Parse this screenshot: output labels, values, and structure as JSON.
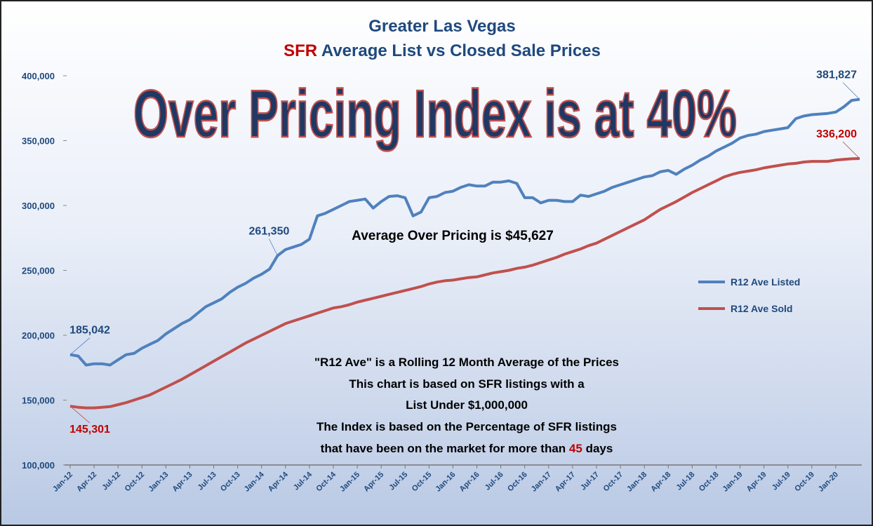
{
  "chart_data": {
    "type": "line",
    "title": "Greater Las Vegas",
    "subtitle_parts": [
      "SFR",
      " Average List vs Closed Sale Prices"
    ],
    "annotations": [
      "Over Pricing Index is at 40%",
      "Average Over Pricing is $45,627"
    ],
    "notes": [
      "\"R12 Ave\" is a Rolling 12 Month Average of the Prices",
      "This chart is based on SFR listings with a",
      "List Under $1,000,000",
      "The Index is based on the Percentage of SFR listings"
    ],
    "note_last_parts": [
      "that have been on the market for more than ",
      "45",
      " days"
    ],
    "categories": [
      "Jan-12",
      null,
      null,
      "Apr-12",
      null,
      null,
      "Jul-12",
      null,
      null,
      "Oct-12",
      null,
      null,
      "Jan-13",
      null,
      null,
      "Apr-13",
      null,
      null,
      "Jul-13",
      null,
      null,
      "Oct-13",
      null,
      null,
      "Jan-14",
      null,
      null,
      "Apr-14",
      null,
      null,
      "Jul-14",
      null,
      null,
      "Oct-14",
      null,
      null,
      "Jan-15",
      null,
      null,
      "Apr-15",
      null,
      null,
      "Jul-15",
      null,
      null,
      "Oct-15",
      null,
      null,
      "Jan-16",
      null,
      null,
      "Apr-16",
      null,
      null,
      "Jul-16",
      null,
      null,
      "Oct-16",
      null,
      null,
      "Jan-17",
      null,
      null,
      "Apr-17",
      null,
      null,
      "Jul-17",
      null,
      null,
      "Oct-17",
      null,
      null,
      "Jan-18",
      null,
      null,
      "Apr-18",
      null,
      null,
      "Jul-18",
      null,
      null,
      "Oct-18",
      null,
      null,
      "Jan-19",
      null,
      null,
      "Apr-19",
      null,
      null,
      "Jul-19",
      null,
      null,
      "Oct-19",
      null,
      null,
      "Jan-20",
      null,
      null,
      null
    ],
    "series": [
      {
        "name": "R12 Ave Listed",
        "color": "#4f81bd",
        "values": [
          185042,
          184000,
          177000,
          178000,
          178000,
          177000,
          181000,
          185000,
          186000,
          190000,
          193000,
          196000,
          201000,
          205000,
          209000,
          212000,
          217000,
          222000,
          225000,
          228000,
          233000,
          237000,
          240000,
          244000,
          247000,
          251000,
          261350,
          266000,
          268000,
          270000,
          274000,
          292000,
          294000,
          297000,
          300000,
          303000,
          304000,
          305000,
          298000,
          303000,
          307000,
          307500,
          306000,
          292000,
          295000,
          306000,
          307000,
          310000,
          311000,
          314000,
          316000,
          315000,
          315000,
          318000,
          318000,
          319000,
          317000,
          306000,
          306000,
          302000,
          304000,
          304000,
          303000,
          303000,
          308000,
          307000,
          309000,
          311000,
          314000,
          316000,
          318000,
          320000,
          322000,
          323000,
          326000,
          327000,
          324000,
          328000,
          331000,
          335000,
          338000,
          342000,
          345000,
          348000,
          352000,
          354000,
          355000,
          357000,
          358000,
          359000,
          360000,
          367000,
          369000,
          370000,
          370500,
          371000,
          372000,
          376000,
          381000,
          381827
        ],
        "value_labels": [
          "185,042",
          null,
          null,
          null,
          null,
          null,
          null,
          null,
          null,
          null,
          null,
          null,
          null,
          null,
          null,
          null,
          null,
          null,
          null,
          null,
          null,
          null,
          null,
          null,
          null,
          null,
          "261,350",
          null,
          null,
          null,
          null,
          null,
          null,
          null,
          null,
          null,
          null,
          null,
          null,
          null,
          null,
          null,
          null,
          null,
          null,
          null,
          null,
          null,
          null,
          null,
          null,
          null,
          null,
          null,
          null,
          null,
          null,
          null,
          null,
          null,
          null,
          null,
          null,
          null,
          null,
          null,
          null,
          null,
          null,
          null,
          null,
          null,
          null,
          null,
          null,
          null,
          null,
          null,
          null,
          null,
          null,
          null,
          null,
          null,
          null,
          null,
          null,
          null,
          null,
          null,
          null,
          null,
          null,
          null,
          null,
          null,
          null,
          null,
          null,
          "381,827"
        ]
      },
      {
        "name": "R12 Ave Sold",
        "color": "#c0504d",
        "values": [
          145301,
          144500,
          144000,
          144000,
          144500,
          145000,
          146500,
          148000,
          150000,
          152000,
          154000,
          157000,
          160000,
          163000,
          166000,
          169500,
          173000,
          176500,
          180000,
          183500,
          187000,
          190500,
          194000,
          197000,
          200000,
          203000,
          206000,
          209000,
          211000,
          213000,
          215000,
          217000,
          219000,
          221000,
          222000,
          223500,
          225500,
          227000,
          228500,
          230000,
          231500,
          233000,
          234500,
          236000,
          237500,
          239500,
          241000,
          242000,
          242500,
          243500,
          244500,
          245000,
          246500,
          248000,
          249000,
          250000,
          251500,
          252500,
          254000,
          256000,
          258000,
          260000,
          262500,
          264500,
          266500,
          269000,
          271000,
          274000,
          277000,
          280000,
          283000,
          286000,
          289000,
          293000,
          297000,
          300000,
          303000,
          306500,
          310000,
          313000,
          316000,
          319000,
          322000,
          324000,
          325500,
          326500,
          327500,
          329000,
          330000,
          331000,
          332000,
          332500,
          333500,
          334000,
          334000,
          334000,
          335000,
          335500,
          336000,
          336200
        ],
        "value_labels": [
          "145,301",
          null,
          null,
          null,
          null,
          null,
          null,
          null,
          null,
          null,
          null,
          null,
          null,
          null,
          null,
          null,
          null,
          null,
          null,
          null,
          null,
          null,
          null,
          null,
          null,
          null,
          null,
          null,
          null,
          null,
          null,
          null,
          null,
          null,
          null,
          null,
          null,
          null,
          null,
          null,
          null,
          null,
          null,
          null,
          null,
          null,
          null,
          null,
          null,
          null,
          null,
          null,
          null,
          null,
          null,
          null,
          null,
          null,
          null,
          null,
          null,
          null,
          null,
          null,
          null,
          null,
          null,
          null,
          null,
          null,
          null,
          null,
          null,
          null,
          null,
          null,
          null,
          null,
          null,
          null,
          null,
          null,
          null,
          null,
          null,
          null,
          null,
          null,
          null,
          null,
          null,
          null,
          null,
          null,
          null,
          null,
          null,
          null,
          null,
          "336,200"
        ]
      }
    ],
    "ylim": [
      100000,
      400000
    ],
    "yticks": [
      {
        "value": 100000,
        "label": "100,000"
      },
      {
        "value": 150000,
        "label": "150,000"
      },
      {
        "value": 200000,
        "label": "200,000"
      },
      {
        "value": 250000,
        "label": "250,000"
      },
      {
        "value": 300000,
        "label": "300,000"
      },
      {
        "value": 350000,
        "label": "350,000"
      },
      {
        "value": 400000,
        "label": "400,000"
      }
    ],
    "grid": false,
    "legend": "right"
  }
}
